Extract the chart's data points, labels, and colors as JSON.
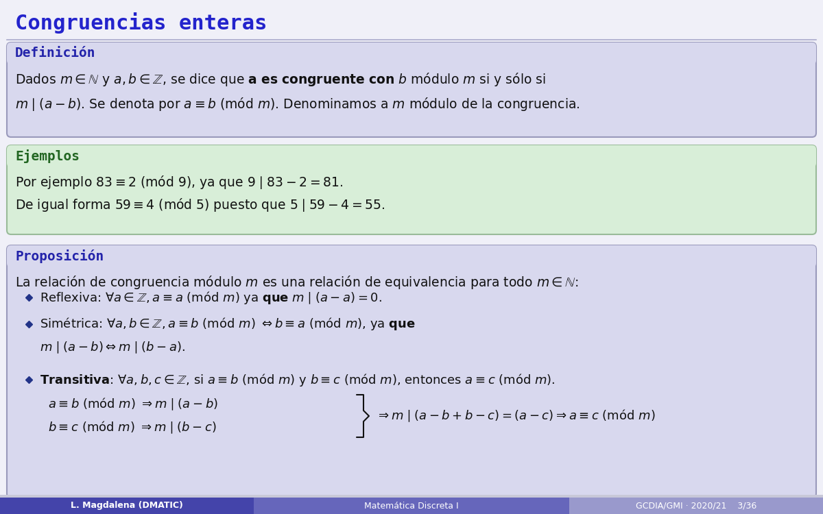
{
  "title": "Congruencias enteras",
  "title_color": "#2323CC",
  "bg_color": "#F0F0F8",
  "footer_left": "L. Magdalena (DMATIC)",
  "footer_center": "Matemática Discreta I",
  "footer_right": "GCDIA/GMI · 2020/21    3/36",
  "footer_bg_left": "#4444AA",
  "footer_bg_center": "#6666BB",
  "footer_bg_right": "#9999CC",
  "footer_text_color": "#FFFFFF",
  "box1_title": "Definición",
  "box1_title_color": "#2323AA",
  "box1_bg": "#D8D8EE",
  "box1_border": "#9999BB",
  "box2_title": "Ejemplos",
  "box2_title_color": "#226622",
  "box2_bg": "#D8EED8",
  "box2_border": "#99BB99",
  "box3_title": "Proposición",
  "box3_title_color": "#2323AA",
  "box3_bg": "#D8D8EE",
  "box3_border": "#9999BB",
  "bullet_color": "#223388",
  "text_color": "#111111"
}
